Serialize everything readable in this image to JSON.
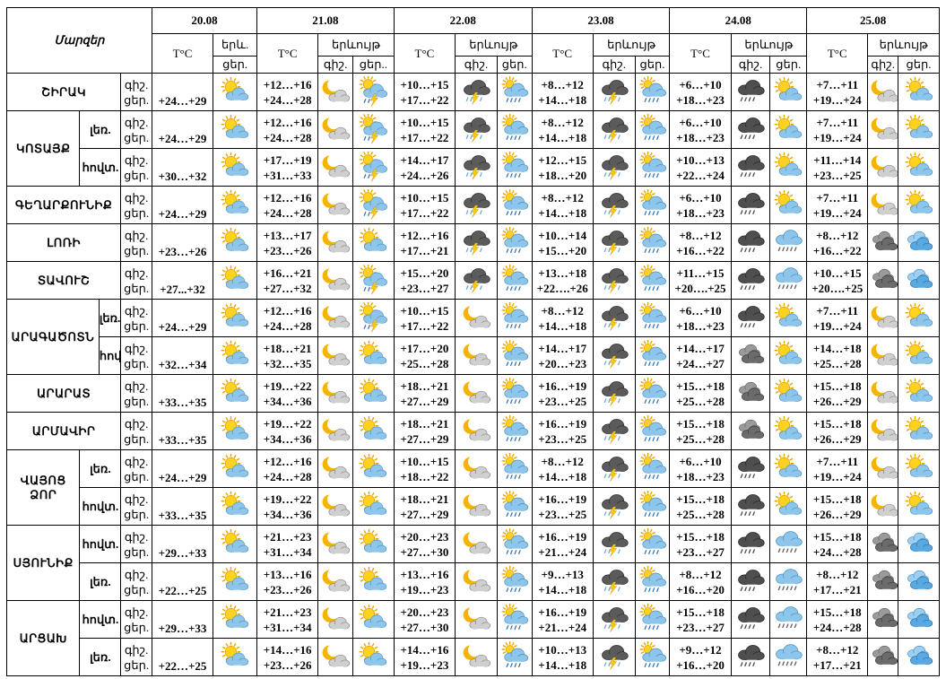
{
  "header": {
    "corner": "Մարզեր",
    "dates": [
      "20.08",
      "21.08",
      "22.08",
      "23.08",
      "24.08",
      "25.08"
    ],
    "temp_label": "T°C",
    "phenom_full": "երևույթ",
    "phenom_short": "երև.",
    "night": "գիշ.",
    "day": "ցեր.",
    "day_cut": "ցեր..",
    "night_cut": "գիշ..",
    "day_cut2": "ցեր.."
  },
  "icon_types": {
    "sun": "sun-cloud-icon",
    "moon": "moon-cloud-icon",
    "storm": "thunderstorm-icon",
    "rain": "rain-cloud-icon",
    "showers": "sun-showers-icon",
    "cloud": "dark-cloud-icon",
    "drizzle": "drizzle-cloud-icon",
    "overcast": "overcast-cloud-icon",
    "bluecloud": "blue-cloud-icon"
  },
  "rows": [
    {
      "region": "ՇԻՐԱԿ",
      "sub": "",
      "d20": "+24…+29",
      "icon20": "sun",
      "days": [
        {
          "n": "+12…+16",
          "d": "+24…+28",
          "iN": "moon",
          "iD": "showers"
        },
        {
          "n": "+10…+15",
          "d": "+17…+22",
          "iN": "storm",
          "iD": "rain"
        },
        {
          "n": "+8…+12",
          "d": "+14…+18",
          "iN": "storm",
          "iD": "rain"
        },
        {
          "n": "+6…+10",
          "d": "+18…+23",
          "iN": "cloud",
          "iD": "sun"
        },
        {
          "n": "+7…+11",
          "d": "+19…+24",
          "iN": "moon",
          "iD": "sun"
        }
      ]
    },
    {
      "region": "ԿՈՏԱՅՔ",
      "sub": "լեռ.",
      "d20": "+24…+29",
      "icon20": "sun",
      "days": [
        {
          "n": "+12…+16",
          "d": "+24…+28",
          "iN": "moon",
          "iD": "showers"
        },
        {
          "n": "+10…+15",
          "d": "+17…+22",
          "iN": "storm",
          "iD": "rain"
        },
        {
          "n": "+8…+12",
          "d": "+14…+18",
          "iN": "storm",
          "iD": "rain"
        },
        {
          "n": "+6…+10",
          "d": "+18…+23",
          "iN": "cloud",
          "iD": "sun"
        },
        {
          "n": "+7…+11",
          "d": "+19…+24",
          "iN": "moon",
          "iD": "sun"
        }
      ]
    },
    {
      "region": "",
      "sub": "հովտ.",
      "d20": "+30…+32",
      "icon20": "sun",
      "days": [
        {
          "n": "+17…+19",
          "d": "+31…+33",
          "iN": "moon",
          "iD": "showers"
        },
        {
          "n": "+14…+17",
          "d": "+24…+26",
          "iN": "storm",
          "iD": "rain"
        },
        {
          "n": "+12…+15",
          "d": "+18…+20",
          "iN": "storm",
          "iD": "rain"
        },
        {
          "n": "+10…+13",
          "d": "+22…+24",
          "iN": "cloud",
          "iD": "sun"
        },
        {
          "n": "+11…+14",
          "d": "+23…+25",
          "iN": "moon",
          "iD": "sun"
        }
      ]
    },
    {
      "region": "ԳԵՂԱՐՔՈՒՆԻՔ",
      "sub": "",
      "d20": "+24…+29",
      "icon20": "sun",
      "days": [
        {
          "n": "+12…+16",
          "d": "+24…+28",
          "iN": "moon",
          "iD": "showers"
        },
        {
          "n": "+10…+15",
          "d": "+17…+22",
          "iN": "storm",
          "iD": "rain"
        },
        {
          "n": "+8…+12",
          "d": "+14…+18",
          "iN": "storm",
          "iD": "rain"
        },
        {
          "n": "+6…+10",
          "d": "+18…+23",
          "iN": "cloud",
          "iD": "sun"
        },
        {
          "n": "+7…+11",
          "d": "+19…+24",
          "iN": "moon",
          "iD": "sun"
        }
      ]
    },
    {
      "region": "ԼՈՌԻ",
      "sub": "",
      "d20": "+23…+26",
      "icon20": "sun",
      "days": [
        {
          "n": "+13…+17",
          "d": "+23…+26",
          "iN": "moon",
          "iD": "sun"
        },
        {
          "n": "+12…+16",
          "d": "+17…+21",
          "iN": "storm",
          "iD": "rain"
        },
        {
          "n": "+10…+14",
          "d": "+15…+20",
          "iN": "storm",
          "iD": "rain"
        },
        {
          "n": "+8…+12",
          "d": "+16…+22",
          "iN": "cloud",
          "iD": "drizzle"
        },
        {
          "n": "+8…+12",
          "d": "+16…+22",
          "iN": "overcast",
          "iD": "bluecloud"
        }
      ]
    },
    {
      "region": "ՏԱՎՈՒՇ",
      "sub": "",
      "d20": "+27...+32",
      "icon20": "sun",
      "days": [
        {
          "n": "+16…+21",
          "d": "+27…+32",
          "iN": "moon",
          "iD": "showers"
        },
        {
          "n": "+15…+20",
          "d": "+23…+27",
          "iN": "storm",
          "iD": "rain"
        },
        {
          "n": "+13…+18",
          "d": "+22….+26",
          "iN": "storm",
          "iD": "rain"
        },
        {
          "n": "+11…+15",
          "d": "+20….+25",
          "iN": "cloud",
          "iD": "drizzle"
        },
        {
          "n": "+10…+15",
          "d": "+20….+25",
          "iN": "overcast",
          "iD": "bluecloud"
        }
      ]
    },
    {
      "region": "ԱՐԱԳԱԾՈՏՆ",
      "sub": "լեռ.",
      "d20": "+24…+29",
      "icon20": "sun",
      "days": [
        {
          "n": "+12…+16",
          "d": "+24…+28",
          "iN": "moon",
          "iD": "showers"
        },
        {
          "n": "+10…+15",
          "d": "+17…+22",
          "iN": "moon",
          "iD": "rain"
        },
        {
          "n": "+8…+12",
          "d": "+14…+18",
          "iN": "storm",
          "iD": "rain"
        },
        {
          "n": "+6…+10",
          "d": "+18…+23",
          "iN": "cloud",
          "iD": "sun"
        },
        {
          "n": "+7…+11",
          "d": "+19…+24",
          "iN": "moon",
          "iD": "sun"
        }
      ]
    },
    {
      "region": "",
      "sub": "հովտ.",
      "d20": "+32…+34",
      "icon20": "sun",
      "days": [
        {
          "n": "+18…+21",
          "d": "+32…+35",
          "iN": "moon",
          "iD": "sun"
        },
        {
          "n": "+17…+20",
          "d": "+25…+28",
          "iN": "moon",
          "iD": "rain"
        },
        {
          "n": "+14…+17",
          "d": "+20…+23",
          "iN": "storm",
          "iD": "rain"
        },
        {
          "n": "+14…+17",
          "d": "+24…+27",
          "iN": "overcast",
          "iD": "sun"
        },
        {
          "n": "+14…+18",
          "d": "+25…+28",
          "iN": "moon",
          "iD": "sun"
        }
      ]
    },
    {
      "region": "ԱՐԱՐԱՏ",
      "sub": "",
      "d20": "+33…+35",
      "icon20": "sun",
      "days": [
        {
          "n": "+19…+22",
          "d": "+34…+36",
          "iN": "moon",
          "iD": "sun"
        },
        {
          "n": "+18…+21",
          "d": "+27…+29",
          "iN": "moon",
          "iD": "rain"
        },
        {
          "n": "+16…+19",
          "d": "+23…+25",
          "iN": "storm",
          "iD": "rain"
        },
        {
          "n": "+15…+18",
          "d": "+25…+28",
          "iN": "overcast",
          "iD": "sun"
        },
        {
          "n": "+15…+18",
          "d": "+26…+29",
          "iN": "moon",
          "iD": "sun"
        }
      ]
    },
    {
      "region": "ԱՐՄԱՎԻՐ",
      "sub": "",
      "d20": "+33…+35",
      "icon20": "sun",
      "days": [
        {
          "n": "+19…+22",
          "d": "+34…+36",
          "iN": "moon",
          "iD": "sun"
        },
        {
          "n": "+18…+21",
          "d": "+27…+29",
          "iN": "moon",
          "iD": "rain"
        },
        {
          "n": "+16…+19",
          "d": "+23…+25",
          "iN": "storm",
          "iD": "rain"
        },
        {
          "n": "+15…+18",
          "d": "+25…+28",
          "iN": "overcast",
          "iD": "sun"
        },
        {
          "n": "+15…+18",
          "d": "+26…+29",
          "iN": "moon",
          "iD": "sun"
        }
      ]
    },
    {
      "region": "ՎԱՅՈՑ\nՁՈՐ",
      "sub": "լեռ.",
      "d20": "+24…+29",
      "icon20": "sun",
      "days": [
        {
          "n": "+12…+16",
          "d": "+24…+28",
          "iN": "moon",
          "iD": "sun"
        },
        {
          "n": "+10…+15",
          "d": "+18…+22",
          "iN": "moon",
          "iD": "rain"
        },
        {
          "n": "+8…+12",
          "d": "+14…+18",
          "iN": "storm",
          "iD": "rain"
        },
        {
          "n": "+6…+10",
          "d": "+18…+23",
          "iN": "cloud",
          "iD": "sun"
        },
        {
          "n": "+7…+11",
          "d": "+19…+24",
          "iN": "moon",
          "iD": "sun"
        }
      ]
    },
    {
      "region": "",
      "sub": "հովտ.",
      "d20": "+33…+35",
      "icon20": "sun",
      "days": [
        {
          "n": "+19…+22",
          "d": "+34…+36",
          "iN": "moon",
          "iD": "sun"
        },
        {
          "n": "+18…+21",
          "d": "+27…+29",
          "iN": "moon",
          "iD": "rain"
        },
        {
          "n": "+16…+19",
          "d": "+23…+25",
          "iN": "storm",
          "iD": "rain"
        },
        {
          "n": "+15…+18",
          "d": "+25…+28",
          "iN": "cloud",
          "iD": "sun"
        },
        {
          "n": "+15…+18",
          "d": "+26…+29",
          "iN": "moon",
          "iD": "sun"
        }
      ]
    },
    {
      "region": "ՍՅՈՒՆԻՔ",
      "sub": "հովտ.",
      "d20": "+29…+33",
      "icon20": "sun",
      "days": [
        {
          "n": "+21…+23",
          "d": "+31…+34",
          "iN": "moon",
          "iD": "sun"
        },
        {
          "n": "+20…+23",
          "d": "+27…+30",
          "iN": "moon",
          "iD": "rain"
        },
        {
          "n": "+16…+19",
          "d": "+21…+24",
          "iN": "storm",
          "iD": "rain"
        },
        {
          "n": "+15…+18",
          "d": "+23…+27",
          "iN": "cloud",
          "iD": "drizzle"
        },
        {
          "n": "+15…+18",
          "d": "+24…+28",
          "iN": "overcast",
          "iD": "bluecloud"
        }
      ]
    },
    {
      "region": "",
      "sub": "լեռ.",
      "d20": "+22…+25",
      "icon20": "sun",
      "days": [
        {
          "n": "+13…+16",
          "d": "+23…+26",
          "iN": "moon",
          "iD": "sun"
        },
        {
          "n": "+13…+16",
          "d": "+19…+23",
          "iN": "moon",
          "iD": "rain"
        },
        {
          "n": "+9…+13",
          "d": "+14…+18",
          "iN": "storm",
          "iD": "rain"
        },
        {
          "n": "+8…+12",
          "d": "+16…+20",
          "iN": "cloud",
          "iD": "drizzle"
        },
        {
          "n": "+8…+12",
          "d": "+17…+21",
          "iN": "overcast",
          "iD": "bluecloud"
        }
      ]
    },
    {
      "region": "ԱՐՑԱԽ",
      "sub": "հովտ.",
      "d20": "+29…+33",
      "icon20": "sun",
      "days": [
        {
          "n": "+21…+23",
          "d": "+31…+34",
          "iN": "moon",
          "iD": "sun"
        },
        {
          "n": "+20…+23",
          "d": "+27…+30",
          "iN": "moon",
          "iD": "rain"
        },
        {
          "n": "+16…+19",
          "d": "+21…+24",
          "iN": "storm",
          "iD": "rain"
        },
        {
          "n": "+15…+18",
          "d": "+23…+27",
          "iN": "cloud",
          "iD": "drizzle"
        },
        {
          "n": "+15…+18",
          "d": "+24…+28",
          "iN": "overcast",
          "iD": "bluecloud"
        }
      ]
    },
    {
      "region": "",
      "sub": "լեռ.",
      "d20": "+22…+25",
      "icon20": "sun",
      "days": [
        {
          "n": "+14…+16",
          "d": "+23…+26",
          "iN": "moon",
          "iD": "sun"
        },
        {
          "n": "+14…+16",
          "d": "+19…+23",
          "iN": "moon",
          "iD": "rain"
        },
        {
          "n": "+10…+13",
          "d": "+14…+18",
          "iN": "storm",
          "iD": "rain"
        },
        {
          "n": "+9…+12",
          "d": "+16…+20",
          "iN": "cloud",
          "iD": "drizzle"
        },
        {
          "n": "+8…+12",
          "d": "+17…+21",
          "iN": "overcast",
          "iD": "bluecloud"
        }
      ]
    }
  ]
}
